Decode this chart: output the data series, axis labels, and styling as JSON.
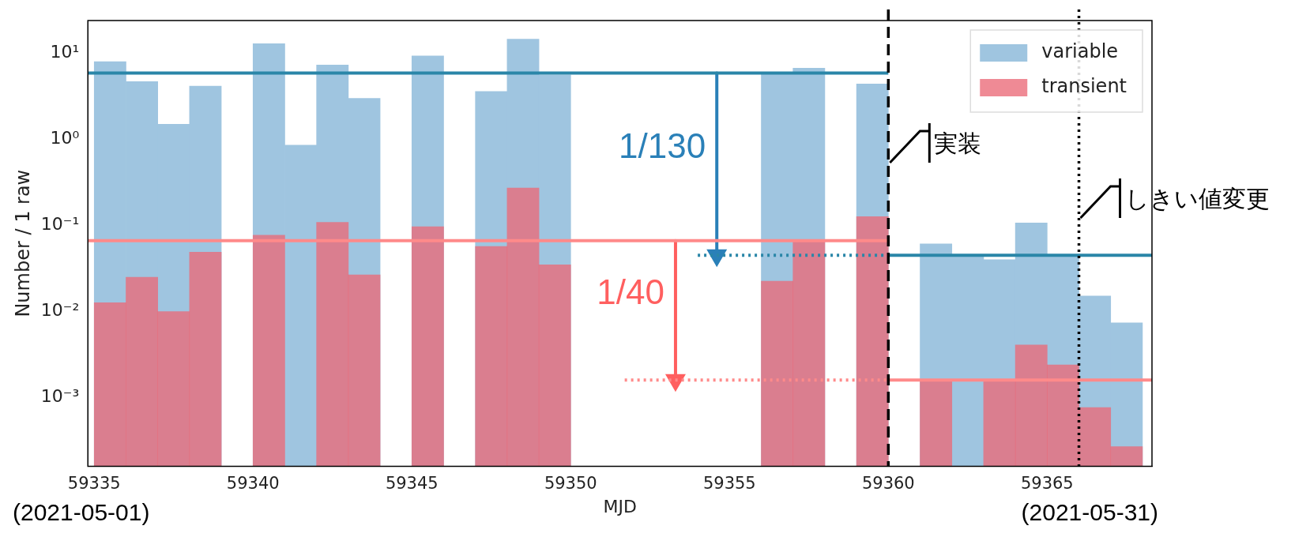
{
  "chart_data": {
    "type": "histogram",
    "xlabel": "MJD",
    "ylabel": "Number / 1 raw",
    "bins": [
      59335,
      59336,
      59337,
      59338,
      59339,
      59340,
      59341,
      59342,
      59343,
      59344,
      59345,
      59346,
      59347,
      59348,
      59349,
      59350,
      59351,
      59352,
      59353,
      59354,
      59355,
      59356,
      59357,
      59358,
      59359,
      59360,
      59361,
      59362,
      59363,
      59364,
      59365,
      59366,
      59367,
      59368
    ],
    "series": [
      {
        "name": "variable",
        "color": "#9fc5e0",
        "values": [
          8.0,
          4.7,
          1.5,
          4.15,
          null,
          12.9,
          0.855,
          7.3,
          3.0,
          null,
          9.3,
          null,
          3.6,
          14.6,
          5.6,
          null,
          null,
          null,
          null,
          null,
          null,
          6.0,
          6.7,
          null,
          4.4,
          null,
          0.061,
          0.045,
          0.04,
          0.107,
          0.045,
          0.0152,
          0.0074
        ]
      },
      {
        "name": "transient",
        "color": "#ea6a78",
        "values": [
          0.0127,
          0.025,
          0.01,
          0.049,
          null,
          0.077,
          null,
          0.109,
          0.0267,
          null,
          0.097,
          null,
          0.057,
          0.273,
          0.035,
          null,
          null,
          null,
          null,
          null,
          null,
          0.0226,
          0.067,
          null,
          0.127,
          null,
          0.0016,
          null,
          0.0016,
          0.0041,
          0.0024,
          0.00077,
          0.00027
        ]
      },
      {
        "type": "line",
        "color": "#2a86a8",
        "x": [
          59334.8,
          59360
        ],
        "values": [
          5.9,
          5.9
        ]
      },
      {
        "type": "line",
        "color": "#2a86a8",
        "line_style": "dotted",
        "x": [
          59354,
          59360
        ],
        "values": [
          0.045,
          0.045
        ]
      },
      {
        "type": "line",
        "color": "#2a86a8",
        "x": [
          59360,
          59368.3
        ],
        "values": [
          0.045,
          0.045
        ]
      },
      {
        "type": "line",
        "color": "#ff8a8a",
        "x": [
          59334.8,
          59360
        ],
        "values": [
          0.0665,
          0.0665
        ]
      },
      {
        "type": "line",
        "color": "#ff8a8a",
        "line_style": "dotted",
        "x": [
          59351.7,
          59360
        ],
        "values": [
          0.0016,
          0.0016
        ]
      },
      {
        "type": "line",
        "color": "#ff8a8a",
        "x": [
          59360,
          59368.3
        ],
        "values": [
          0.0016,
          0.0016
        ]
      },
      {
        "type": "line",
        "name": "1/130",
        "color": "#2a80b8",
        "marker": "triangle",
        "x": [
          59354.6,
          59354.6
        ],
        "values": [
          5.9,
          0.045
        ]
      },
      {
        "type": "line",
        "name": "1/40",
        "color": "#ff5f5f",
        "marker": "triangle",
        "x": [
          59353.3,
          59353.3
        ],
        "values": [
          0.0665,
          0.0016
        ]
      }
    ],
    "xlim": [
      59334.8,
      59368.3
    ],
    "ylim": [
      0.00016,
      24
    ],
    "xticks": [
      59335,
      59340,
      59345,
      59350,
      59355,
      59360,
      59365
    ],
    "yticks": [
      {
        "value": 10,
        "label": "10¹"
      },
      {
        "value": 1,
        "label": "10⁰"
      },
      {
        "value": 0.1,
        "label": "10⁻¹"
      },
      {
        "value": 0.01,
        "label": "10⁻²"
      },
      {
        "value": 0.001,
        "label": "10⁻³"
      }
    ],
    "log": "y",
    "legend": "top right",
    "ref_lines": [
      {
        "axis": "x",
        "value": 59360,
        "label": "実装",
        "color": "#000000",
        "line_style": "dashed"
      },
      {
        "axis": "x",
        "value": 59366,
        "label": "しきい値変更",
        "color": "#000000",
        "line_style": "dotted"
      }
    ],
    "annotations": [
      "(2021-05-01)",
      "(2021-05-31)"
    ]
  }
}
